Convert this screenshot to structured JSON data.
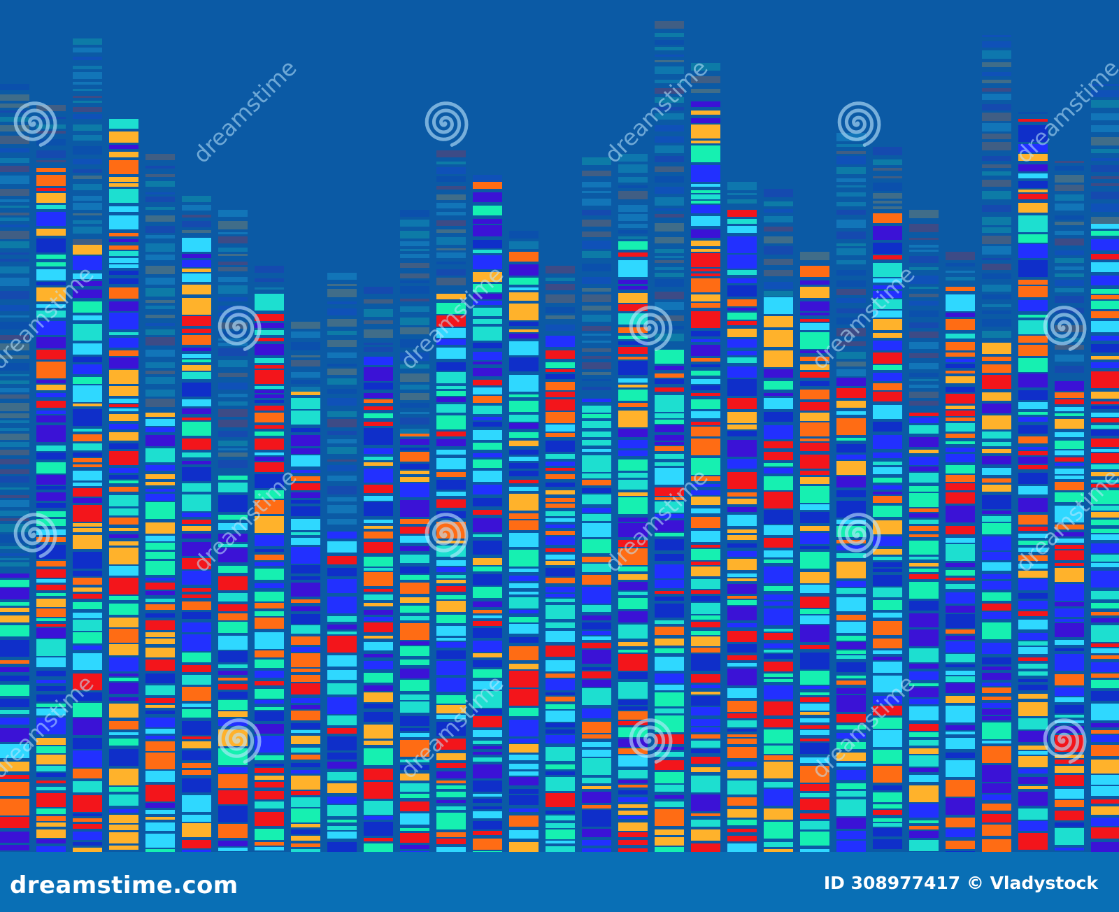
{
  "colors": {
    "background": "#0b5aa5",
    "footer_background": "#096fb5",
    "stripe_palette": [
      "#1ddfd0",
      "#2fd8ff",
      "#f3151b",
      "#ff6c14",
      "#3b12d6",
      "#2230ff",
      "#16f0b1",
      "#ffb22b",
      "#0f2fc9"
    ],
    "watermark_color": "#bfe8ff"
  },
  "watermark": {
    "brand_text": "dreamstime",
    "icon_name": "dreamstime-spiral-icon"
  },
  "footer": {
    "site_label": "dreamstime.com",
    "id_label": "ID 308977417",
    "copyright_symbol": "©",
    "author": "Vladystock"
  }
}
